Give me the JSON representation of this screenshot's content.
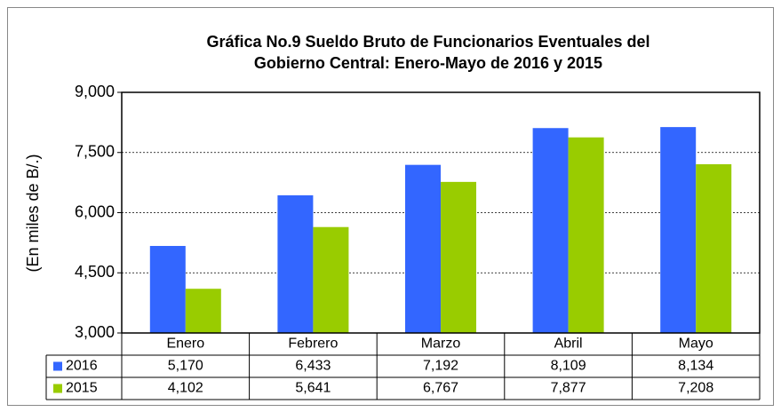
{
  "chart_data": {
    "type": "bar",
    "title": [
      "Gráfica No.9 Sueldo Bruto de Funcionarios Eventuales del",
      "Gobierno Central: Enero-Mayo de 2016 y 2015"
    ],
    "ylabel": "(En miles de B/.)",
    "categories": [
      "Enero",
      "Febrero",
      "Marzo",
      "Abril",
      "Mayo"
    ],
    "series": [
      {
        "name": "2016",
        "color": "#3366ff",
        "values": [
          5170,
          6433,
          7192,
          8109,
          8134
        ],
        "value_labels": [
          "5,170",
          "6,433",
          "7,192",
          "8,109",
          "8,134"
        ]
      },
      {
        "name": "2015",
        "color": "#99cc00",
        "values": [
          4102,
          5641,
          6767,
          7877,
          7208
        ],
        "value_labels": [
          "4,102",
          "5,641",
          "6,767",
          "7,877",
          "7,208"
        ]
      }
    ],
    "ylim": [
      3000,
      9000
    ],
    "yticks": [
      {
        "value": 3000,
        "label": "3,000"
      },
      {
        "value": 4500,
        "label": "4,500"
      },
      {
        "value": 6000,
        "label": "6,000"
      },
      {
        "value": 7500,
        "label": "7,500"
      },
      {
        "value": 9000,
        "label": "9,000"
      }
    ],
    "grid": true
  }
}
